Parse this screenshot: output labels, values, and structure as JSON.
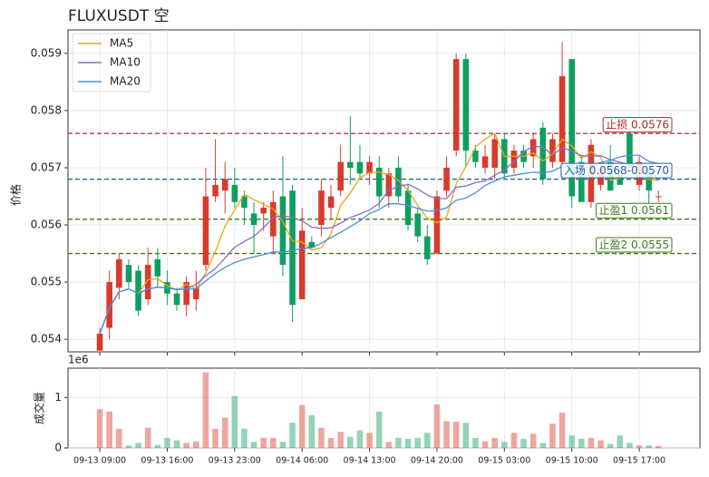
{
  "chart_data": {
    "type": "candlestick",
    "title": "FLUXUSDT  空",
    "ylabel": "价格",
    "up_color": "#d93a2b",
    "down_color": "#0e9f5f",
    "grid": true,
    "legend": "upper left",
    "xlim": [
      -3.3,
      62.3
    ],
    "xticks": [
      {
        "value": 0,
        "label": "09-13 09:00"
      },
      {
        "value": 7,
        "label": "09-13 16:00"
      },
      {
        "value": 14,
        "label": "09-13 23:00"
      },
      {
        "value": 21,
        "label": "09-14 06:00"
      },
      {
        "value": 28,
        "label": "09-14 13:00"
      },
      {
        "value": 35,
        "label": "09-14 20:00"
      },
      {
        "value": 42,
        "label": "09-15 03:00"
      },
      {
        "value": 49,
        "label": "09-15 10:00"
      },
      {
        "value": 56,
        "label": "09-15 17:00"
      }
    ],
    "ylim": [
      0.05378,
      0.05941
    ],
    "yticks": [
      0.054,
      0.055,
      0.056,
      0.057,
      0.058,
      0.059
    ],
    "open": [
      0.0538,
      0.0542,
      0.0549,
      0.0553,
      0.0552,
      0.0547,
      0.0554,
      0.055,
      0.0548,
      0.0546,
      0.0547,
      0.0553,
      0.0565,
      0.0566,
      0.0567,
      0.0565,
      0.0562,
      0.0562,
      0.0558,
      0.0565,
      0.0566,
      0.0547,
      0.0557,
      0.056,
      0.0563,
      0.0566,
      0.0571,
      0.0571,
      0.0569,
      0.057,
      0.0565,
      0.057,
      0.0566,
      0.0562,
      0.0558,
      0.0555,
      0.0566,
      0.0573,
      0.0589,
      0.0573,
      0.057,
      0.057,
      0.0575,
      0.057,
      0.0573,
      0.0572,
      0.0577,
      0.0571,
      0.0571,
      0.0589,
      0.0571,
      0.0564,
      0.0567,
      0.0571,
      0.0569,
      0.0576,
      0.0567,
      0.0569,
      0.0565
    ],
    "high": [
      0.0542,
      0.0552,
      0.0555,
      0.0554,
      0.0553,
      0.0556,
      0.0556,
      0.0552,
      0.0549,
      0.0551,
      0.0552,
      0.057,
      0.0575,
      0.0571,
      0.057,
      0.0566,
      0.0564,
      0.0564,
      0.0566,
      0.0572,
      0.0567,
      0.0563,
      0.0558,
      0.0568,
      0.0567,
      0.0574,
      0.0579,
      0.0574,
      0.0572,
      0.0572,
      0.057,
      0.0572,
      0.0567,
      0.0563,
      0.056,
      0.0566,
      0.0572,
      0.059,
      0.059,
      0.0574,
      0.0574,
      0.0576,
      0.0576,
      0.0574,
      0.0574,
      0.0576,
      0.0578,
      0.0576,
      0.0592,
      0.0589,
      0.0572,
      0.0575,
      0.0571,
      0.0574,
      0.057,
      0.0577,
      0.0572,
      0.057,
      0.0566
    ],
    "low": [
      0.0538,
      0.054,
      0.0547,
      0.0549,
      0.0544,
      0.0546,
      0.0549,
      0.0546,
      0.0545,
      0.0544,
      0.0545,
      0.0552,
      0.0564,
      0.0562,
      0.0563,
      0.056,
      0.0555,
      0.0559,
      0.0555,
      0.0551,
      0.0543,
      0.0547,
      0.0556,
      0.0558,
      0.0561,
      0.0565,
      0.0567,
      0.0568,
      0.0567,
      0.0563,
      0.0563,
      0.0564,
      0.0559,
      0.0557,
      0.0553,
      0.0555,
      0.0565,
      0.0572,
      0.057,
      0.057,
      0.0569,
      0.0568,
      0.0568,
      0.0569,
      0.057,
      0.057,
      0.0567,
      0.057,
      0.0568,
      0.0563,
      0.0564,
      0.0563,
      0.0566,
      0.0566,
      0.0567,
      0.057,
      0.0566,
      0.0563,
      0.0564
    ],
    "close": [
      0.0541,
      0.055,
      0.0554,
      0.055,
      0.0545,
      0.0553,
      0.0551,
      0.0548,
      0.0546,
      0.055,
      0.0549,
      0.0565,
      0.0567,
      0.0568,
      0.0564,
      0.0563,
      0.056,
      0.0563,
      0.0564,
      0.0553,
      0.0546,
      0.0559,
      0.0556,
      0.0566,
      0.0565,
      0.0571,
      0.057,
      0.0569,
      0.0571,
      0.0565,
      0.0569,
      0.0565,
      0.056,
      0.0558,
      0.0554,
      0.0565,
      0.057,
      0.0589,
      0.0573,
      0.0571,
      0.0572,
      0.0575,
      0.0569,
      0.0573,
      0.0571,
      0.0575,
      0.0568,
      0.0575,
      0.0586,
      0.0565,
      0.0564,
      0.0574,
      0.057,
      0.0566,
      0.0567,
      0.057,
      0.0571,
      0.0566,
      0.0565
    ],
    "series": [
      {
        "name": "MA5",
        "color": "#e6a817",
        "values": [
          0.0541,
          0.05455,
          0.05483,
          0.05488,
          0.0548,
          0.05504,
          0.05506,
          0.05494,
          0.05486,
          0.05496,
          0.05488,
          0.05516,
          0.05554,
          0.05598,
          0.05626,
          0.05654,
          0.05644,
          0.05636,
          0.05628,
          0.05606,
          0.05572,
          0.0557,
          0.05556,
          0.0556,
          0.05584,
          0.05634,
          0.05656,
          0.05682,
          0.05692,
          0.05692,
          0.05688,
          0.05678,
          0.0566,
          0.05634,
          0.05612,
          0.05604,
          0.05614,
          0.05672,
          0.05702,
          0.05736,
          0.0575,
          0.0576,
          0.0572,
          0.0572,
          0.0572,
          0.05726,
          0.05712,
          0.05724,
          0.0575,
          0.05738,
          0.05716,
          0.05728,
          0.05718,
          0.05678,
          0.05682,
          0.05694,
          0.05688,
          0.0568,
          0.05678
        ]
      },
      {
        "name": "MA10",
        "color": "#8a6cc9",
        "values": [
          0.0541,
          0.05455,
          0.05483,
          0.05488,
          0.0548,
          0.05488,
          0.05491,
          0.0549,
          0.05487,
          0.05488,
          0.05496,
          0.05511,
          0.05524,
          0.05542,
          0.05561,
          0.05571,
          0.0558,
          0.05595,
          0.05613,
          0.05616,
          0.05613,
          0.05607,
          0.05596,
          0.05594,
          0.05595,
          0.05603,
          0.05613,
          0.05619,
          0.05626,
          0.05638,
          0.05661,
          0.05667,
          0.05671,
          0.05663,
          0.05652,
          0.05646,
          0.05646,
          0.05666,
          0.05668,
          0.05674,
          0.05677,
          0.05687,
          0.05696,
          0.05711,
          0.05728,
          0.05738,
          0.05736,
          0.05722,
          0.05735,
          0.05729,
          0.05721,
          0.0572,
          0.05721,
          0.05714,
          0.0571,
          0.05705,
          0.05708,
          0.05699,
          0.05678
        ]
      },
      {
        "name": "MA20",
        "color": "#4a8fd8",
        "values": [
          0.0541,
          0.05455,
          0.05483,
          0.05488,
          0.0548,
          0.05488,
          0.05491,
          0.0549,
          0.05487,
          0.05488,
          0.05488,
          0.05502,
          0.05515,
          0.05526,
          0.05534,
          0.0554,
          0.05544,
          0.05548,
          0.05553,
          0.05552,
          0.05555,
          0.05559,
          0.0556,
          0.05568,
          0.05578,
          0.05587,
          0.05597,
          0.05607,
          0.0562,
          0.05627,
          0.05637,
          0.05637,
          0.05634,
          0.05629,
          0.05624,
          0.05625,
          0.0563,
          0.05643,
          0.05647,
          0.05656,
          0.05669,
          0.05677,
          0.05684,
          0.05687,
          0.0569,
          0.05692,
          0.05691,
          0.05694,
          0.05702,
          0.05702,
          0.05699,
          0.05704,
          0.05709,
          0.05713,
          0.05719,
          0.05722,
          0.05722,
          0.05711,
          0.05707
        ]
      }
    ],
    "levels": [
      {
        "label": "止损 0.0576",
        "value": 0.0576,
        "color": "#a8282d"
      },
      {
        "label": "入场 0.0568-0.0570",
        "value": 0.0568,
        "color": "#1f62a8"
      },
      {
        "label": "止盈1 0.0561",
        "value": 0.0561,
        "color": "#3f7a1c"
      },
      {
        "label": "止盈2 0.0555",
        "value": 0.0555,
        "color": "#3f7a1c"
      }
    ],
    "volume": {
      "ylabel": "成交量",
      "offset_label": "1e6",
      "ylim": [
        0,
        1.58
      ],
      "yticks": [
        0,
        1
      ],
      "values": [
        0.77,
        0.72,
        0.38,
        0.05,
        0.1,
        0.4,
        0.06,
        0.2,
        0.15,
        0.1,
        0.13,
        1.5,
        0.38,
        0.6,
        1.03,
        0.38,
        0.12,
        0.2,
        0.2,
        0.12,
        0.5,
        0.85,
        0.65,
        0.4,
        0.2,
        0.32,
        0.22,
        0.35,
        0.3,
        0.72,
        0.12,
        0.2,
        0.18,
        0.2,
        0.3,
        0.86,
        0.53,
        0.52,
        0.5,
        0.2,
        0.13,
        0.2,
        0.12,
        0.3,
        0.18,
        0.28,
        0.1,
        0.48,
        0.7,
        0.25,
        0.18,
        0.2,
        0.15,
        0.08,
        0.25,
        0.1,
        0.05,
        0.05,
        0.04
      ]
    }
  }
}
